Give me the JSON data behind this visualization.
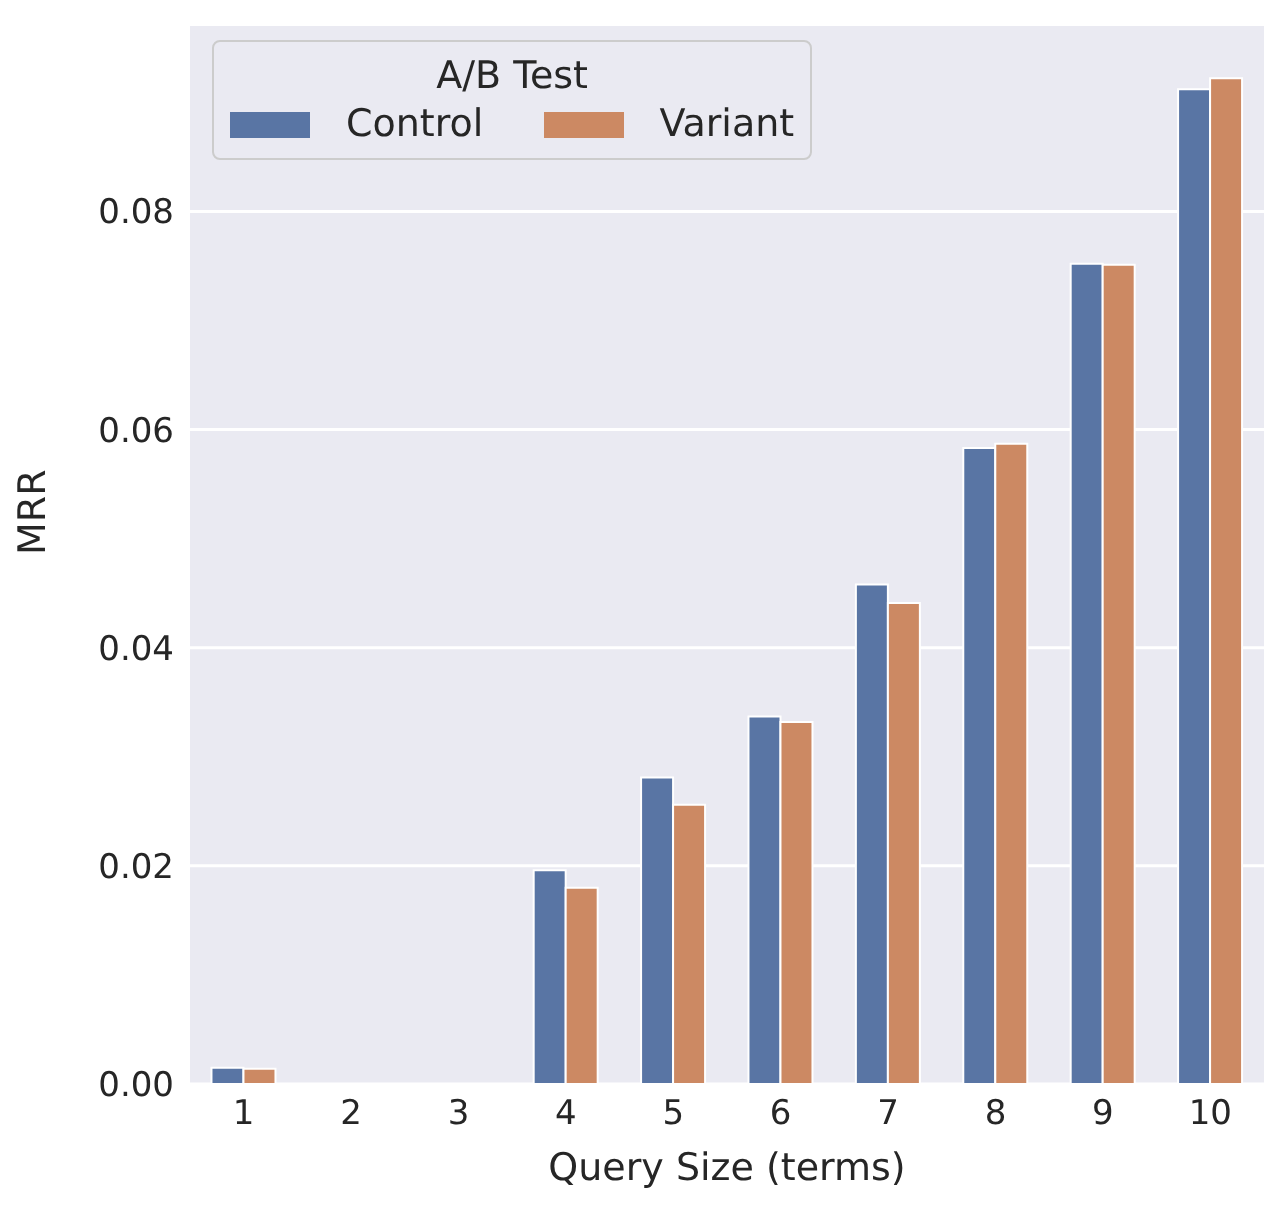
{
  "chart_data": {
    "type": "bar",
    "xlabel": "Query Size (terms)",
    "ylabel": "MRR",
    "legend_title": "A/B Test",
    "categories": [
      "1",
      "2",
      "3",
      "4",
      "5",
      "6",
      "7",
      "8",
      "9",
      "10"
    ],
    "series": [
      {
        "name": "Control",
        "color": "#5975a4",
        "values": [
          0.0015,
          0,
          0,
          0.0196,
          0.0281,
          0.0337,
          0.0458,
          0.0583,
          0.0752,
          0.0912
        ]
      },
      {
        "name": "Variant",
        "color": "#cc8963",
        "values": [
          0.0014,
          0,
          0,
          0.018,
          0.0256,
          0.0332,
          0.0441,
          0.0587,
          0.0751,
          0.0922
        ]
      }
    ],
    "ylim": [
      0,
      0.097
    ],
    "yticks": [
      {
        "value": 0,
        "label": "0.00"
      },
      {
        "value": 0.02,
        "label": "0.02"
      },
      {
        "value": 0.04,
        "label": "0.04"
      },
      {
        "value": 0.06,
        "label": "0.06"
      },
      {
        "value": 0.08,
        "label": "0.08"
      }
    ],
    "grid": "y",
    "legend": "top left"
  }
}
